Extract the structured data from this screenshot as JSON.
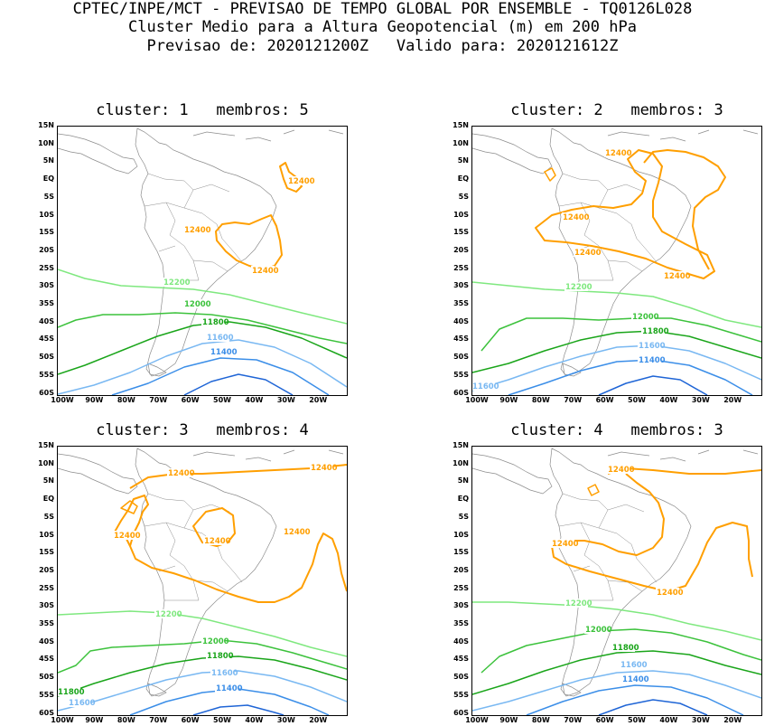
{
  "header": {
    "line1": "CPTEC/INPE/MCT - PREVISAO DE TEMPO GLOBAL POR ENSEMBLE - TQ0126L028",
    "line2": "Cluster Medio para a Altura Geopotencial (m) em 200 hPa",
    "line3": "Previsao de: 2020121200Z   Valido para: 2020121612Z"
  },
  "axes": {
    "lat_labels": [
      "15N",
      "10N",
      "5N",
      "EQ",
      "5S",
      "10S",
      "15S",
      "20S",
      "25S",
      "30S",
      "35S",
      "40S",
      "45S",
      "50S",
      "55S",
      "60S"
    ],
    "lon_labels": [
      "100W",
      "90W",
      "80W",
      "70W",
      "60W",
      "50W",
      "40W",
      "30W",
      "20W"
    ],
    "lat_range": [
      -60,
      15
    ],
    "lon_range": [
      -100,
      -20
    ]
  },
  "colors": {
    "c12400": "#ff9f00",
    "c12200": "#7fe87f",
    "c12000": "#3cc23c",
    "c11800": "#1aa51a",
    "c11600": "#79b8f2",
    "c11400": "#3b8ee8",
    "c11200": "#1f65d6",
    "coast": "#8c8c8c"
  },
  "panels": [
    {
      "title": "cluster: 1   membros: 5",
      "labels": {
        "a": "12400",
        "b": "12400",
        "c": "12400",
        "d": "12200",
        "e": "12000",
        "f": "11800",
        "g": "11600",
        "h": "11400"
      }
    },
    {
      "title": "cluster: 2   membros: 3",
      "labels": {
        "a": "12400",
        "b": "12400",
        "c": "12400",
        "d": "12400",
        "e": "12200",
        "f": "12000",
        "g": "11800",
        "h": "11600",
        "i": "11400",
        "j": "11600"
      }
    },
    {
      "title": "cluster: 3   membros: 4",
      "labels": {
        "a": "12400",
        "b": "12400",
        "c": "12400",
        "d": "12400",
        "e": "12400",
        "f": "12200",
        "g": "12000",
        "h": "11800",
        "i": "11600",
        "j": "11400",
        "k": "11600",
        "l": "11800"
      }
    },
    {
      "title": "cluster: 4   membros: 3",
      "labels": {
        "a": "12400",
        "b": "12400",
        "c": "12400",
        "d": "12200",
        "e": "12000",
        "f": "11800",
        "g": "11600",
        "h": "11400"
      }
    }
  ]
}
